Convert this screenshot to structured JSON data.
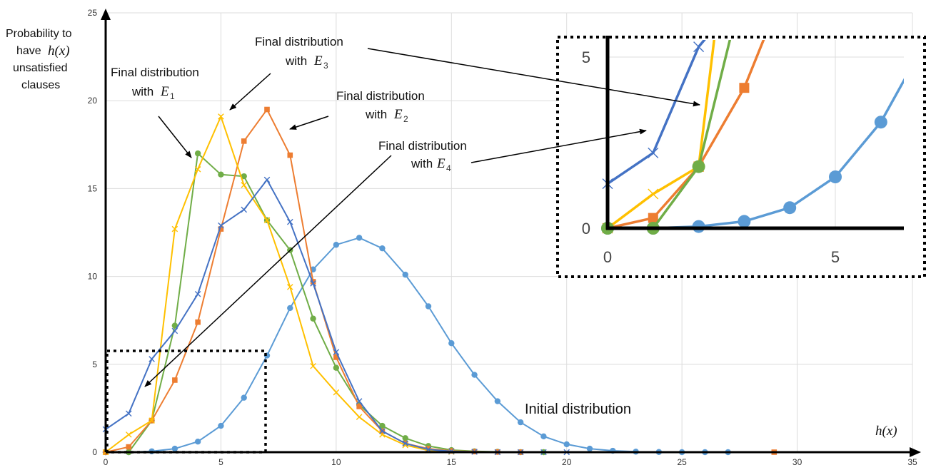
{
  "chart_data": {
    "type": "line",
    "ylabel_lines": [
      "Probability to",
      "have",
      "unsatisfied",
      "clauses"
    ],
    "ylabel_math": "h(x)",
    "xlabel_math": "h(x)",
    "xlim": [
      0,
      35
    ],
    "ylim": [
      0,
      25
    ],
    "xticks": [
      0,
      5,
      10,
      15,
      20,
      25,
      30,
      35
    ],
    "yticks": [
      0,
      5,
      10,
      15,
      20,
      25
    ],
    "grid": true,
    "series": [
      {
        "key": "initial",
        "color": "#5b9bd5",
        "marker": "circle",
        "x": [
          0,
          1,
          2,
          3,
          4,
          5,
          6,
          7,
          8,
          9,
          10,
          11,
          12,
          13,
          14,
          15,
          16,
          17,
          18,
          19,
          20,
          21,
          22,
          23,
          24,
          25,
          26,
          27
        ],
        "y": [
          0,
          0,
          0.05,
          0.2,
          0.6,
          1.5,
          3.1,
          5.5,
          8.2,
          10.4,
          11.8,
          12.2,
          11.6,
          10.1,
          8.3,
          6.2,
          4.4,
          2.9,
          1.7,
          0.9,
          0.45,
          0.2,
          0.08,
          0.03,
          0.01,
          0,
          0,
          0
        ]
      },
      {
        "key": "e1",
        "color": "#70ad47",
        "marker": "circle",
        "x": [
          0,
          1,
          2,
          3,
          4,
          5,
          6,
          7,
          8,
          9,
          10,
          11,
          12,
          13,
          14,
          15,
          16,
          17,
          18,
          19
        ],
        "y": [
          0,
          0,
          1.8,
          7.2,
          17,
          15.8,
          15.7,
          13.2,
          11.5,
          7.6,
          4.8,
          2.7,
          1.5,
          0.8,
          0.35,
          0.12,
          0.05,
          0.02,
          0,
          0
        ]
      },
      {
        "key": "e2",
        "color": "#ed7d31",
        "marker": "square",
        "x": [
          0,
          1,
          2,
          3,
          4,
          5,
          6,
          7,
          8,
          9,
          10,
          11,
          12,
          13,
          14,
          15,
          16,
          17,
          18,
          29
        ],
        "y": [
          0,
          0.3,
          1.8,
          4.1,
          7.4,
          12.7,
          17.7,
          19.5,
          16.9,
          9.7,
          5.4,
          2.6,
          1.2,
          0.5,
          0.2,
          0.07,
          0.03,
          0.01,
          0,
          0
        ]
      },
      {
        "key": "e3",
        "color": "#ffc000",
        "marker": "x",
        "x": [
          0,
          1,
          2,
          3,
          4,
          5,
          6,
          7,
          8,
          9,
          10,
          11,
          12,
          13,
          14,
          15
        ],
        "y": [
          0,
          1,
          1.8,
          12.7,
          16.1,
          19.1,
          15.2,
          13.2,
          9.4,
          4.9,
          3.4,
          2,
          1,
          0.4,
          0.1,
          0.02
        ]
      },
      {
        "key": "e4",
        "color": "#4472c4",
        "marker": "x",
        "x": [
          0,
          1,
          2,
          3,
          4,
          5,
          6,
          7,
          8,
          9,
          10,
          11,
          12,
          13,
          14,
          15,
          16,
          17,
          18,
          19,
          20
        ],
        "y": [
          1.3,
          2.2,
          5.3,
          6.9,
          9,
          12.9,
          13.8,
          15.5,
          13.1,
          9.6,
          5.7,
          2.9,
          1.2,
          0.5,
          0.15,
          0.05,
          0.02,
          0,
          0,
          0,
          0
        ]
      }
    ],
    "inset": {
      "xlim": [
        0,
        6.7
      ],
      "ylim": [
        0,
        5.8
      ],
      "xticks": [
        0,
        5
      ],
      "yticks": [
        0,
        5
      ]
    },
    "annotations": {
      "e1": {
        "line1": "Final distribution",
        "line2": "with",
        "math": "E",
        "sub": "1"
      },
      "e2": {
        "line1": "Final distribution",
        "line2": "with",
        "math": "E",
        "sub": "2"
      },
      "e3": {
        "line1": "Final distribution",
        "line2": "with",
        "math": "E",
        "sub": "3"
      },
      "e4": {
        "line1": "Final distribution",
        "line2": "with",
        "math": "E",
        "sub": "4"
      },
      "initial": "Initial distribution"
    }
  }
}
